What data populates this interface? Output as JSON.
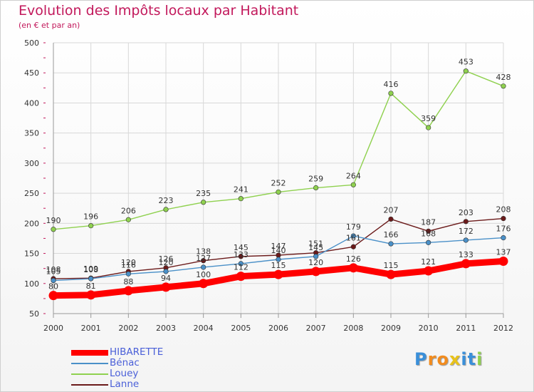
{
  "chart_data": {
    "type": "line",
    "title": "Evolution des Impôts locaux par Habitant",
    "subtitle": "(en € et par an)",
    "x": [
      "2000",
      "2001",
      "2002",
      "2003",
      "2004",
      "2005",
      "2006",
      "2007",
      "2008",
      "2009",
      "2010",
      "2011",
      "2012"
    ],
    "ylim": [
      50,
      500
    ],
    "yticks": [
      50,
      100,
      150,
      200,
      250,
      300,
      350,
      400,
      450,
      500
    ],
    "grid": true,
    "legend_position": "bottom-left",
    "series": [
      {
        "name": "HIBARETTE",
        "color": "#ff0000",
        "values": [
          80,
          81,
          88,
          94,
          100,
          112,
          115,
          120,
          126,
          115,
          121,
          133,
          137
        ]
      },
      {
        "name": "Bénac",
        "color": "#4a90c8",
        "values": [
          105,
          108,
          116,
          120,
          127,
          133,
          140,
          145,
          179,
          166,
          168,
          172,
          176
        ]
      },
      {
        "name": "Louey",
        "color": "#8fd14f",
        "values": [
          190,
          196,
          206,
          223,
          235,
          241,
          252,
          259,
          264,
          416,
          359,
          453,
          428
        ]
      },
      {
        "name": "Lanne",
        "color": "#6b1a1a",
        "values": [
          108,
          109,
          120,
          126,
          138,
          145,
          147,
          151,
          161,
          207,
          187,
          203,
          208
        ]
      }
    ]
  },
  "logo": {
    "letters": [
      "P",
      "r",
      "o",
      "x",
      "i",
      "t",
      "i"
    ],
    "colors": [
      "#3a8fd9",
      "#f28c1e",
      "#f28c1e",
      "#e8c21a",
      "#3a8fd9",
      "#3a8fd9",
      "#8fd14f"
    ]
  }
}
